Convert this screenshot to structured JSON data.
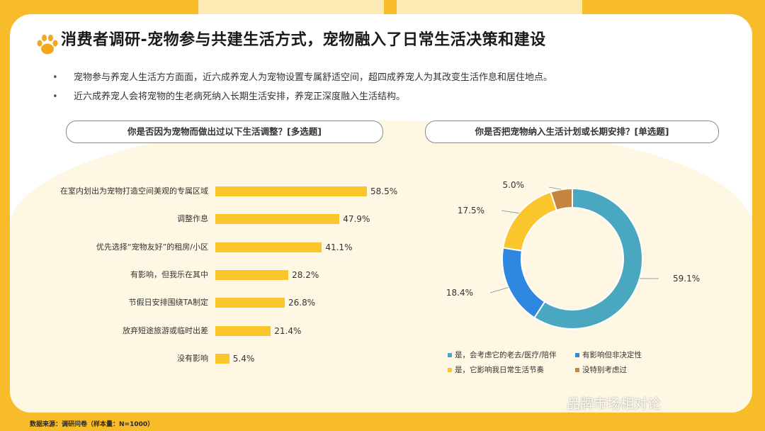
{
  "title": "消费者调研-宠物参与共建生活方式，宠物融入了日常生活决策和建设",
  "bullets": [
    "宠物参与养宠人生活方方面面，近六成养宠人为宠物设置专属舒适空间，超四成养宠人为其改变生活作息和居住地点。",
    "近六成养宠人会将宠物的生老病死纳入长期生活安排，养宠正深度融入生活结构。"
  ],
  "left_question": "你是否因为宠物而做出过以下生活调整？[多选题]",
  "right_question": "你是否把宠物纳入生活计划或长期安排？[单选题]",
  "source": "数据来源：调研问卷（样本量：N=1000）",
  "watermark": "品牌市场相对论",
  "colors": {
    "accent": "#f8bb2a",
    "bar": "#fbc52c",
    "teal": "#4aa7c0",
    "blue": "#2f87e0",
    "yellow": "#fbc52c",
    "brown": "#c6853f"
  },
  "chart_data": [
    {
      "type": "bar",
      "orientation": "horizontal",
      "title": "你是否因为宠物而做出过以下生活调整？[多选题]",
      "categories": [
        "在室内划出为宠物打造空间美观的专属区域",
        "调整作息",
        "优先选择“宠物友好”的租房/小区",
        "有影响，但我乐在其中",
        "节假日安排围绕TA制定",
        "放弃短途旅游或临时出差",
        "没有影响"
      ],
      "values": [
        58.5,
        47.9,
        41.1,
        28.2,
        26.8,
        21.4,
        5.4
      ],
      "labels": [
        "58.5%",
        "47.9%",
        "41.1%",
        "28.2%",
        "26.8%",
        "21.4%",
        "5.4%"
      ],
      "unit": "%",
      "xlim": [
        0,
        100
      ]
    },
    {
      "type": "pie",
      "style": "donut",
      "title": "你是否把宠物纳入生活计划或长期安排？[单选题]",
      "slices": [
        {
          "name": "是，会考虑它的老去/医疗/陪伴",
          "value": 59.1,
          "label": "59.1%",
          "color": "#4aa7c0"
        },
        {
          "name": "有影响但非决定性",
          "value": 18.4,
          "label": "18.4%",
          "color": "#2f87e0"
        },
        {
          "name": "是，它影响我日常生活节奏",
          "value": 17.5,
          "label": "17.5%",
          "color": "#fbc52c"
        },
        {
          "name": "没特别考虑过",
          "value": 5.0,
          "label": "5.0%",
          "color": "#c6853f"
        }
      ],
      "legend": "bottom"
    }
  ]
}
